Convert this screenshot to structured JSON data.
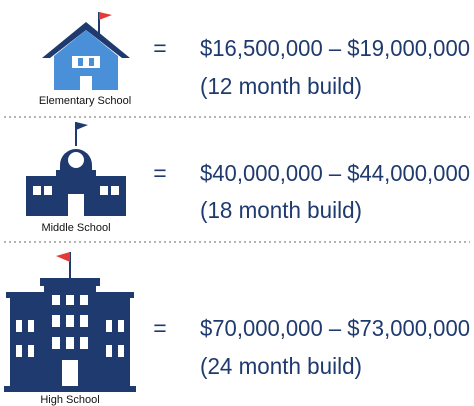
{
  "rows": [
    {
      "label": "Elementary School",
      "symbol": "=",
      "cost": "$16,500,000 – $19,000,000",
      "duration": "(12 month build)"
    },
    {
      "label": "Middle School",
      "symbol": "=",
      "cost": "$40,000,000 – $44,000,000",
      "duration": "(18 month build)"
    },
    {
      "label": "High School",
      "symbol": "=",
      "cost": "$70,000,000 – $73,000,000",
      "duration": "(24 month build)"
    }
  ]
}
